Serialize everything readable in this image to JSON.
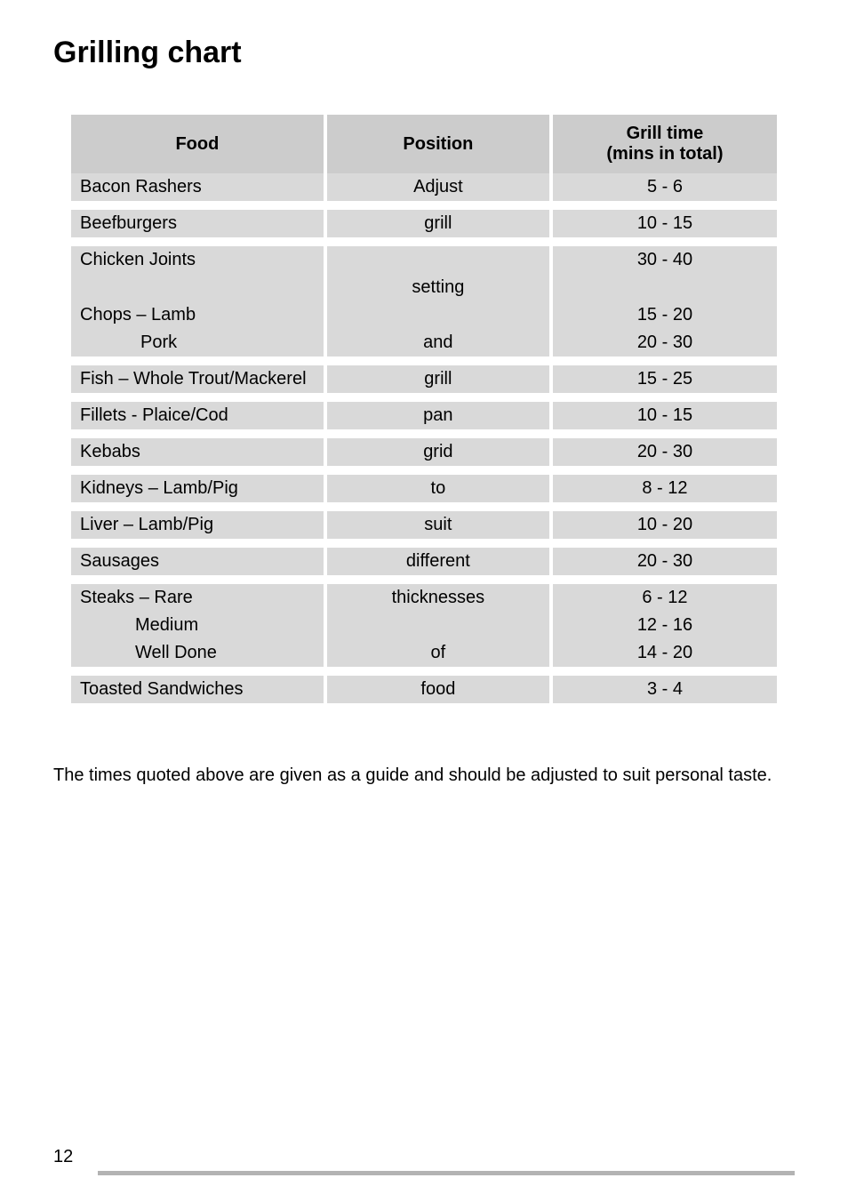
{
  "title": "Grilling chart",
  "headers": {
    "food": "Food",
    "position": "Position",
    "time": "Grill time\n(mins in total)"
  },
  "position_words": [
    "Adjust",
    "grill",
    "",
    "setting",
    "",
    "and",
    "grill",
    "pan",
    "grid",
    "to",
    "suit",
    "different",
    "thicknesses",
    "",
    "of",
    "food"
  ],
  "rows": [
    {
      "food": "Bacon Rashers",
      "pos": "Adjust",
      "time": "5 - 6"
    },
    {
      "spacer": true
    },
    {
      "food": "Beefburgers",
      "pos": "grill",
      "time": "10 - 15"
    },
    {
      "spacer": true
    },
    {
      "food": "Chicken Joints",
      "pos": "",
      "time": "30 - 40"
    },
    {
      "food": "",
      "pos": "setting",
      "time": ""
    },
    {
      "food": "Chops –  Lamb",
      "pos": "",
      "time": "15 - 20"
    },
    {
      "food": "Pork",
      "indent": 1,
      "pos": "and",
      "time": "20 - 30"
    },
    {
      "spacer": true
    },
    {
      "food": "Fish – Whole Trout/Mackerel",
      "pos": "grill",
      "time": "15 - 25"
    },
    {
      "spacer": true
    },
    {
      "food": "Fillets - Plaice/Cod",
      "pos": "pan",
      "time": "10 - 15"
    },
    {
      "spacer": true
    },
    {
      "food": "Kebabs",
      "pos": "grid",
      "time": "20 - 30"
    },
    {
      "spacer": true
    },
    {
      "food": "Kidneys – Lamb/Pig",
      "pos": "to",
      "time": "8 - 12"
    },
    {
      "spacer": true
    },
    {
      "food": "Liver –     Lamb/Pig",
      "pos": "suit",
      "time": "10 - 20"
    },
    {
      "spacer": true
    },
    {
      "food": "Sausages",
      "pos": "different",
      "time": "20 - 30"
    },
    {
      "spacer": true
    },
    {
      "food": "Steaks –  Rare",
      "pos": "thicknesses",
      "time": "6 - 12"
    },
    {
      "food": "Medium",
      "indent": 2,
      "pos": "",
      "time": "12 - 16"
    },
    {
      "food": "Well Done",
      "indent": 2,
      "pos": "of",
      "time": "14 - 20"
    },
    {
      "spacer": true
    },
    {
      "food": "Toasted Sandwiches",
      "pos": "food",
      "time": "3 - 4"
    }
  ],
  "note": "The times quoted above are given as a guide and should be adjusted to suit personal taste.",
  "pageNumber": "12",
  "colors": {
    "header_bg": "#cccccc",
    "row_bg": "#d9d9d9",
    "rule": "#b3b3b3"
  },
  "fontsize": {
    "title": 34,
    "body": 20
  }
}
